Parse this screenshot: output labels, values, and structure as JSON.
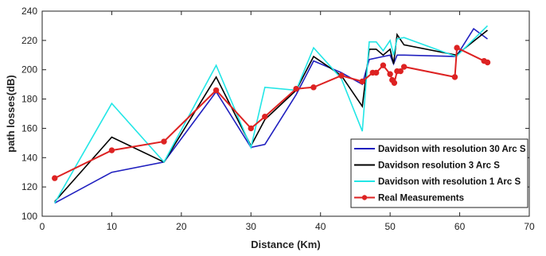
{
  "chart_data": {
    "type": "line",
    "xlabel": "Distance (Km)",
    "ylabel": "path losses(dB)",
    "xlim": [
      0,
      70
    ],
    "ylim": [
      100,
      240
    ],
    "xticks": [
      0,
      10,
      20,
      30,
      40,
      50,
      60,
      70
    ],
    "yticks": [
      100,
      120,
      140,
      160,
      180,
      200,
      220,
      240
    ],
    "grid": false,
    "legend_position": "bottom-right",
    "series": [
      {
        "name": "Davidson with resolution 30 Arc S",
        "color": "#1f1fbf",
        "marker": "none",
        "x": [
          1.8,
          10,
          17.5,
          25,
          30,
          32,
          36.5,
          39,
          43,
          46,
          47,
          49,
          50,
          50.5,
          51,
          52,
          59.5,
          62,
          64
        ],
        "y": [
          109,
          130,
          137,
          185,
          147,
          149,
          183,
          206,
          198,
          190,
          207,
          209,
          210,
          204,
          210,
          210,
          209,
          228,
          221
        ]
      },
      {
        "name": "Davidson resolution 3 Arc S",
        "color": "#000000",
        "marker": "none",
        "x": [
          1.8,
          10,
          17.5,
          25,
          30,
          32,
          36.5,
          39,
          43,
          46,
          47,
          48,
          49,
          50,
          50.5,
          51,
          52,
          59.5,
          64
        ],
        "y": [
          110,
          154,
          137,
          195,
          148,
          166,
          186,
          209,
          196,
          175,
          214,
          214,
          210,
          214,
          204,
          224,
          217,
          210,
          227
        ]
      },
      {
        "name": "Davidson with resolution 1 Arc S",
        "color": "#22e6e6",
        "marker": "none",
        "x": [
          1.8,
          10,
          17.5,
          25,
          30,
          32,
          36.5,
          39,
          43,
          46,
          47,
          48,
          49,
          50,
          50.5,
          51,
          52,
          59.5,
          64
        ],
        "y": [
          109,
          177,
          137,
          203,
          147,
          188,
          186,
          215,
          194,
          158,
          219,
          219,
          213,
          220,
          210,
          221,
          222,
          209,
          230
        ]
      },
      {
        "name": "Real Measurements",
        "color": "#dd2222",
        "marker": "circle",
        "x": [
          1.8,
          10,
          17.5,
          25,
          30,
          32,
          36.5,
          39,
          43,
          46,
          47.5,
          48,
          49,
          50,
          50.3,
          50.6,
          51,
          51.5,
          52,
          59.3,
          59.6,
          63.5,
          64
        ],
        "y": [
          126,
          145,
          151,
          186,
          160,
          168,
          187,
          188,
          196,
          192,
          198,
          198,
          203,
          197,
          193,
          191,
          199,
          199,
          202,
          195,
          215,
          206,
          205
        ]
      }
    ]
  }
}
